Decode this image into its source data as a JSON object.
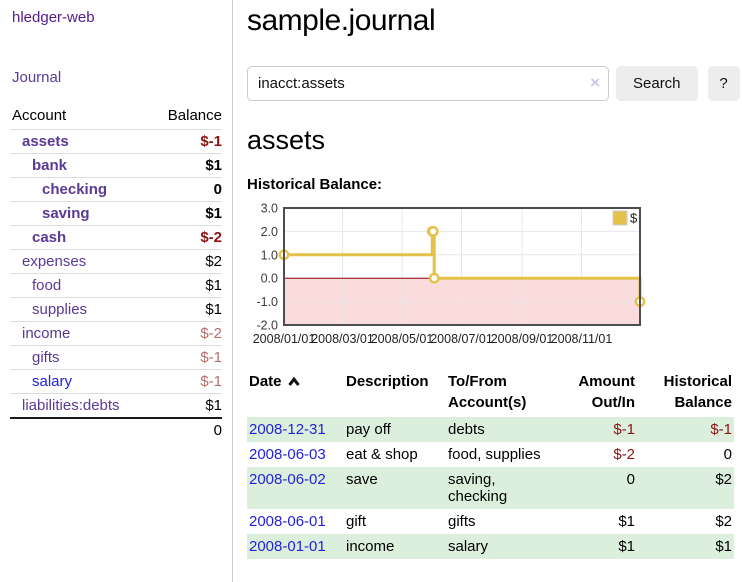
{
  "app": {
    "brand": "hledger-web",
    "nav_journal": "Journal"
  },
  "theme": {
    "link_purple": "#5b3a94",
    "link_blue": "#2222dd",
    "negative_red": "#8b1414",
    "faded_negative_red": "#b36d6d",
    "row_alt_green": "#dcefdc"
  },
  "sidebar": {
    "header": {
      "account": "Account",
      "balance": "Balance"
    },
    "accounts": [
      {
        "name": "assets",
        "balance": "$-1"
      },
      {
        "name": "bank",
        "balance": "$1"
      },
      {
        "name": "checking",
        "balance": "0"
      },
      {
        "name": "saving",
        "balance": "$1"
      },
      {
        "name": "cash",
        "balance": "$-2"
      },
      {
        "name": "expenses",
        "balance": "$2"
      },
      {
        "name": "food",
        "balance": "$1"
      },
      {
        "name": "supplies",
        "balance": "$1"
      },
      {
        "name": "income",
        "balance": "$-2"
      },
      {
        "name": "gifts",
        "balance": "$-1"
      },
      {
        "name": "salary",
        "balance": "$-1"
      },
      {
        "name": "liabilities:debts",
        "balance": "$1"
      }
    ],
    "total": "0"
  },
  "header": {
    "title": "sample.journal"
  },
  "search": {
    "value": "inacct:assets",
    "clear_label": "×",
    "search_button": "Search",
    "help_button": "?"
  },
  "account_page": {
    "heading": "assets",
    "chart_title": "Historical Balance:"
  },
  "chart_data": {
    "type": "line",
    "style": "step-with-markers",
    "title": "Historical Balance:",
    "legend": [
      {
        "label": "$",
        "color": "#e4c148"
      }
    ],
    "legend_position": "top-right",
    "grid": true,
    "ylim": [
      -2.0,
      3.0
    ],
    "yticks": [
      3.0,
      2.0,
      1.0,
      0.0,
      -1.0,
      -2.0
    ],
    "ytick_labels": [
      "3.0",
      "2.0",
      "1.0",
      "0.0",
      "-1.0",
      "-2.0"
    ],
    "x_range": [
      "2008-01-01",
      "2008-12-31"
    ],
    "xticks": [
      "2008-01-01",
      "2008-03-01",
      "2008-05-01",
      "2008-07-01",
      "2008-09-01",
      "2008-11-01"
    ],
    "xtick_labels": [
      "2008/01/01",
      "2008/03/01",
      "2008/05/01",
      "2008/07/01",
      "2008/09/01",
      "2008/11/01"
    ],
    "series": [
      {
        "name": "$",
        "color": "#e4c148",
        "points": [
          [
            "2008-01-01",
            1
          ],
          [
            "2008-06-01",
            2
          ],
          [
            "2008-06-02",
            2
          ],
          [
            "2008-06-03",
            0
          ],
          [
            "2008-12-31",
            -1
          ]
        ]
      }
    ],
    "negative_region_fill": "#fbdcdc",
    "zero_line_color": "#8b0000",
    "grid_color": "#e7e7e7",
    "border_color": "#4d4d4d"
  },
  "register": {
    "headers": {
      "date": "Date",
      "description": "Description",
      "tofrom": "To/From Account(s)",
      "amount": "Amount Out/In",
      "balance": "Historical Balance"
    },
    "rows": [
      {
        "date": "2008-12-31",
        "description": "pay off",
        "accounts": "debts",
        "amount": "$-1",
        "balance": "$-1"
      },
      {
        "date": "2008-06-03",
        "description": "eat & shop",
        "accounts": "food, supplies",
        "amount": "$-2",
        "balance": "0"
      },
      {
        "date": "2008-06-02",
        "description": "save",
        "accounts": "saving, checking",
        "amount": "0",
        "balance": "$2"
      },
      {
        "date": "2008-06-01",
        "description": "gift",
        "accounts": "gifts",
        "amount": "$1",
        "balance": "$2"
      },
      {
        "date": "2008-01-01",
        "description": "income",
        "accounts": "salary",
        "amount": "$1",
        "balance": "$1"
      }
    ]
  }
}
